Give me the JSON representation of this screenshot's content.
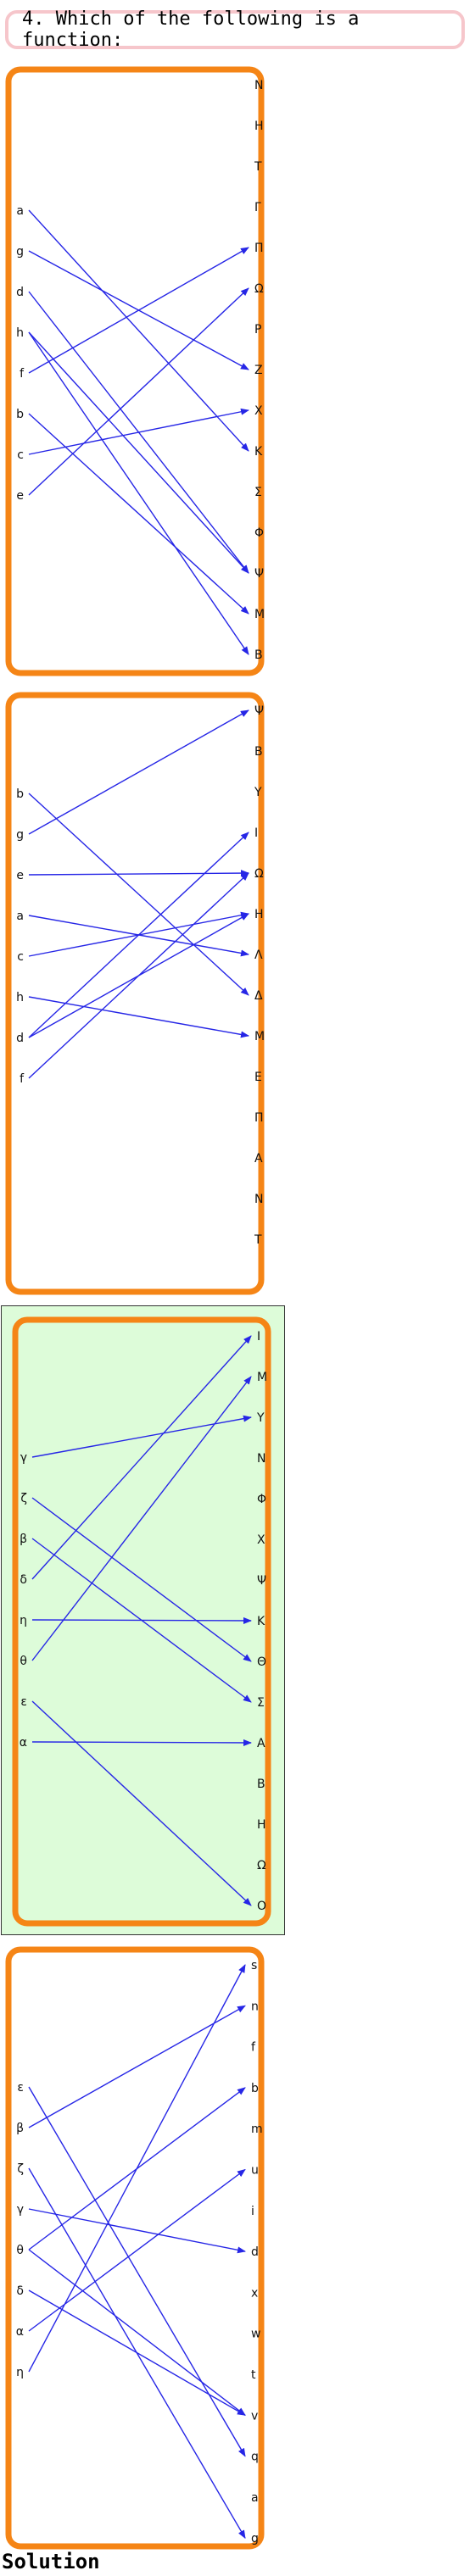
{
  "question": {
    "text": "4. Which of the following is a function:"
  },
  "solution_label": "Solution",
  "colors": {
    "frame": "#f58516",
    "arrow": "#2626e6",
    "selected_bg": "#ddfcd9",
    "question_border": "#f6c6cb"
  },
  "options": [
    {
      "domain": [
        "a",
        "g",
        "d",
        "h",
        "f",
        "b",
        "c",
        "e"
      ],
      "codomain": [
        "Ν",
        "Η",
        "Τ",
        "Γ",
        "Π",
        "Ω",
        "Ρ",
        "Ζ",
        "Χ",
        "Κ",
        "Σ",
        "Φ",
        "Ψ",
        "Μ",
        "Β"
      ],
      "mapping": [
        [
          "a",
          "Κ"
        ],
        [
          "g",
          "Ζ"
        ],
        [
          "d",
          "Ψ"
        ],
        [
          "h",
          "Ψ"
        ],
        [
          "h",
          "Β"
        ],
        [
          "f",
          "Π"
        ],
        [
          "b",
          "Μ"
        ],
        [
          "c",
          "Χ"
        ],
        [
          "e",
          "Ω"
        ]
      ],
      "selected": false
    },
    {
      "domain": [
        "b",
        "g",
        "e",
        "a",
        "c",
        "h",
        "d",
        "f"
      ],
      "codomain": [
        "Ψ",
        "Β",
        "Υ",
        "Ι",
        "Ω",
        "Η",
        "Λ",
        "Δ",
        "Μ",
        "Ε",
        "Π",
        "Α",
        "Ν",
        "Τ"
      ],
      "mapping": [
        [
          "b",
          "Δ"
        ],
        [
          "g",
          "Ψ"
        ],
        [
          "e",
          "Ω"
        ],
        [
          "a",
          "Λ"
        ],
        [
          "c",
          "Η"
        ],
        [
          "h",
          "Μ"
        ],
        [
          "d",
          "Η"
        ],
        [
          "d",
          "Ι"
        ],
        [
          "f",
          "Ω"
        ]
      ],
      "selected": false
    },
    {
      "domain": [
        "γ",
        "ζ",
        "β",
        "δ",
        "η",
        "θ",
        "ε",
        "α"
      ],
      "codomain": [
        "Ι",
        "Μ",
        "Υ",
        "Ν",
        "Φ",
        "Χ",
        "Ψ",
        "Κ",
        "Θ",
        "Σ",
        "Α",
        "Β",
        "Η",
        "Ω",
        "Ο"
      ],
      "mapping": [
        [
          "γ",
          "Υ"
        ],
        [
          "ζ",
          "Θ"
        ],
        [
          "β",
          "Σ"
        ],
        [
          "δ",
          "Ι"
        ],
        [
          "η",
          "Κ"
        ],
        [
          "θ",
          "Μ"
        ],
        [
          "ε",
          "Ο"
        ],
        [
          "α",
          "Α"
        ]
      ],
      "selected": true
    },
    {
      "domain": [
        "ε",
        "β",
        "ζ",
        "γ",
        "θ",
        "δ",
        "α",
        "η"
      ],
      "codomain": [
        "s",
        "n",
        "f",
        "b",
        "m",
        "u",
        "i",
        "d",
        "x",
        "w",
        "t",
        "v",
        "q",
        "a",
        "g"
      ],
      "mapping": [
        [
          "ε",
          "q"
        ],
        [
          "β",
          "n"
        ],
        [
          "ζ",
          "g"
        ],
        [
          "γ",
          "d"
        ],
        [
          "θ",
          "b"
        ],
        [
          "θ",
          "v"
        ],
        [
          "δ",
          "v"
        ],
        [
          "α",
          "u"
        ],
        [
          "η",
          "s"
        ]
      ],
      "selected": false
    }
  ]
}
